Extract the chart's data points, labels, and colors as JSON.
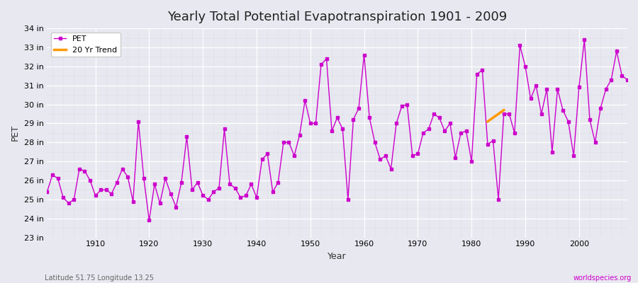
{
  "title": "Yearly Total Potential Evapotranspiration 1901 - 2009",
  "xlabel": "Year",
  "ylabel": "PET",
  "footnote_left": "Latitude 51.75 Longitude 13.25",
  "footnote_right": "worldspecies.org",
  "background_color": "#e8e8f0",
  "plot_bg_color": "#e8e8f0",
  "line_color": "#cc00cc",
  "trend_color": "#ff9900",
  "ylim_min": 23,
  "ylim_max": 34,
  "xlim_min": 1901,
  "xlim_max": 2009,
  "years": [
    1901,
    1902,
    1903,
    1904,
    1905,
    1906,
    1907,
    1908,
    1909,
    1910,
    1911,
    1912,
    1913,
    1914,
    1915,
    1916,
    1917,
    1918,
    1919,
    1920,
    1921,
    1922,
    1923,
    1924,
    1925,
    1926,
    1927,
    1928,
    1929,
    1930,
    1931,
    1932,
    1933,
    1934,
    1935,
    1936,
    1937,
    1938,
    1939,
    1940,
    1941,
    1942,
    1943,
    1944,
    1945,
    1946,
    1947,
    1948,
    1949,
    1950,
    1951,
    1952,
    1953,
    1954,
    1955,
    1956,
    1957,
    1958,
    1959,
    1960,
    1961,
    1962,
    1963,
    1964,
    1965,
    1966,
    1967,
    1968,
    1969,
    1970,
    1971,
    1972,
    1973,
    1974,
    1975,
    1976,
    1977,
    1978,
    1979,
    1980,
    1981,
    1982,
    1983,
    1984,
    1985,
    1986,
    1987,
    1988,
    1989,
    1990,
    1991,
    1992,
    1993,
    1994,
    1995,
    1996,
    1997,
    1998,
    1999,
    2000,
    2001,
    2002,
    2003,
    2004,
    2005,
    2006,
    2007,
    2008,
    2009
  ],
  "values_in": [
    25.4,
    26.3,
    26.1,
    25.1,
    24.8,
    25.0,
    26.6,
    26.5,
    26.0,
    25.2,
    25.5,
    25.5,
    25.3,
    25.9,
    26.6,
    26.2,
    24.9,
    29.1,
    26.1,
    23.9,
    25.8,
    24.8,
    26.1,
    25.3,
    24.6,
    25.9,
    28.3,
    25.5,
    25.9,
    25.2,
    25.0,
    25.4,
    25.6,
    28.7,
    25.8,
    25.6,
    25.1,
    25.2,
    25.8,
    25.1,
    27.1,
    27.4,
    25.4,
    25.9,
    28.0,
    28.0,
    27.3,
    28.4,
    30.2,
    29.0,
    29.0,
    32.1,
    32.4,
    28.6,
    29.3,
    28.7,
    25.0,
    29.2,
    29.8,
    32.6,
    29.3,
    28.0,
    27.1,
    27.3,
    26.6,
    29.0,
    29.9,
    30.0,
    27.3,
    27.4,
    28.5,
    28.7,
    29.5,
    29.3,
    28.6,
    29.0,
    27.2,
    28.5,
    28.6,
    27.0,
    31.6,
    31.8,
    27.9,
    28.1,
    25.0,
    29.5,
    29.5,
    28.5,
    33.1,
    32.0,
    30.3,
    31.0,
    29.5,
    30.8,
    27.5,
    30.8,
    29.7,
    29.1,
    27.3,
    30.9,
    33.4,
    29.2,
    28.0,
    29.8,
    30.8,
    31.3,
    32.8,
    31.5,
    31.3
  ],
  "trend_years": [
    1983,
    1984,
    1985,
    1986
  ],
  "trend_values": [
    29.1,
    29.3,
    29.5,
    29.7
  ],
  "ytick_labels": [
    "23 in",
    "24 in",
    "25 in",
    "26 in",
    "27 in",
    "28 in",
    "29 in",
    "30 in",
    "31 in",
    "32 in",
    "33 in",
    "34 in"
  ],
  "ytick_values": [
    23,
    24,
    25,
    26,
    27,
    28,
    29,
    30,
    31,
    32,
    33,
    34
  ],
  "xtick_values": [
    1910,
    1920,
    1930,
    1940,
    1950,
    1960,
    1970,
    1980,
    1990,
    2000
  ],
  "grid_color": "#ffffff",
  "minor_grid_color": "#d8d8e8"
}
